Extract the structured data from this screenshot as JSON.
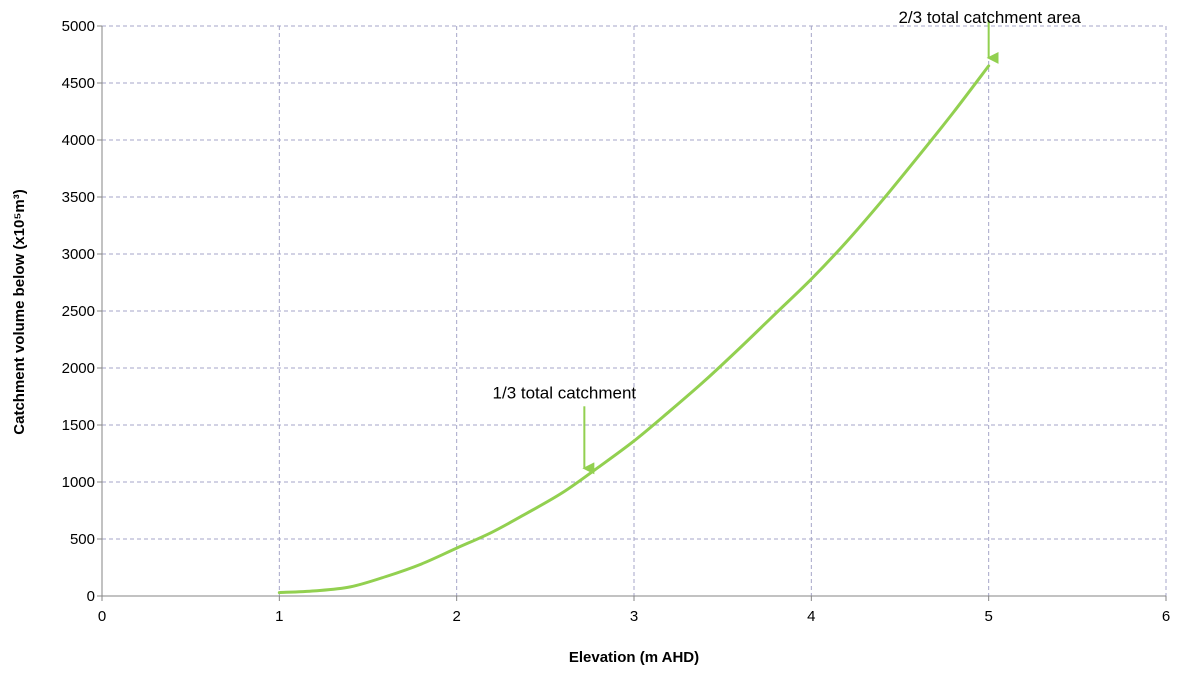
{
  "chart_data": {
    "type": "line",
    "title": "",
    "xlabel": "Elevation (m AHD)",
    "ylabel": "Catchment volume below (x10⁵m³)",
    "xlim": [
      0,
      6
    ],
    "ylim": [
      0,
      5000
    ],
    "x_ticks": [
      0,
      1,
      2,
      3,
      4,
      5,
      6
    ],
    "y_ticks": [
      0,
      500,
      1000,
      1500,
      2000,
      2500,
      3000,
      3500,
      4000,
      4500,
      5000
    ],
    "grid": true,
    "legend": "none",
    "series": [
      {
        "color": "#92d050",
        "x": [
          1.0,
          1.2,
          1.4,
          1.6,
          1.8,
          2.0,
          2.2,
          2.4,
          2.6,
          2.8,
          3.0,
          3.2,
          3.4,
          3.6,
          3.8,
          4.0,
          4.2,
          4.4,
          4.6,
          4.8,
          5.0
        ],
        "y": [
          30,
          45,
          80,
          170,
          280,
          420,
          560,
          730,
          910,
          1130,
          1360,
          1620,
          1890,
          2180,
          2480,
          2780,
          3110,
          3470,
          3850,
          4240,
          4650
        ]
      }
    ],
    "annotations": [
      {
        "text": "1/3 total catchment",
        "x": 2.72,
        "y": 1050,
        "arrow_color": "#92d050"
      },
      {
        "text": "2/3 total catchment area",
        "x": 5.0,
        "y": 4650,
        "arrow_color": "#92d050"
      }
    ]
  }
}
